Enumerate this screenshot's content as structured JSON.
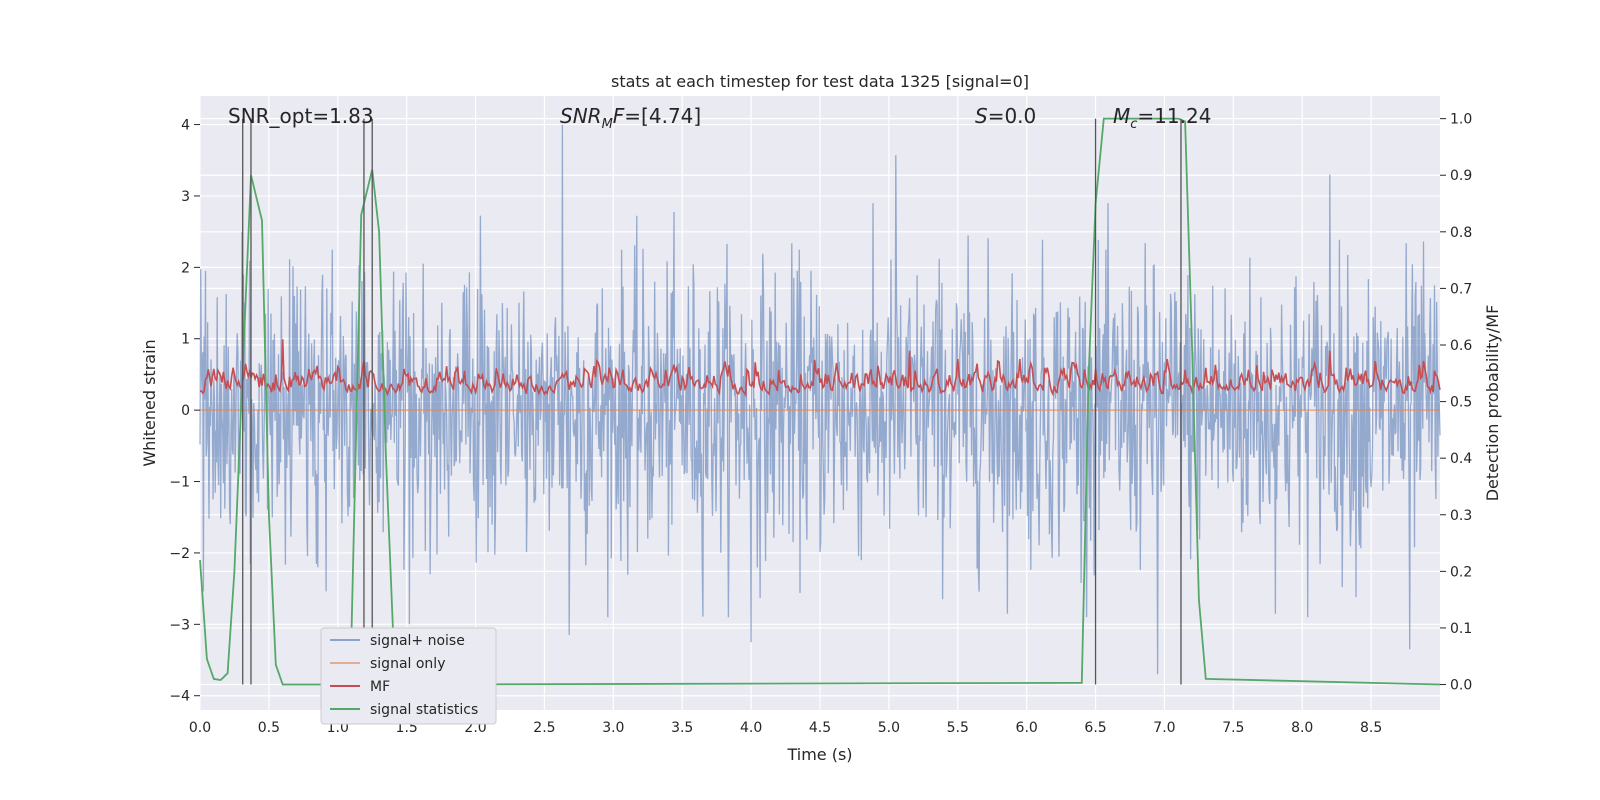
{
  "chart_data": {
    "type": "line",
    "title": "stats at each timestep for test data 1325 [signal=0]",
    "xlabel": "Time (s)",
    "ylabel": "Whitened strain",
    "ylabel_right": "Detection probability/MF",
    "xlim": [
      0.0,
      9.0
    ],
    "ylim": [
      -4.2,
      4.4
    ],
    "ylim_right": [
      -0.045,
      1.04
    ],
    "x_ticks": [
      "0.0",
      "0.5",
      "1.0",
      "1.5",
      "2.0",
      "2.5",
      "3.0",
      "3.5",
      "4.0",
      "4.5",
      "5.0",
      "5.5",
      "6.0",
      "6.5",
      "7.0",
      "7.5",
      "8.0",
      "8.5"
    ],
    "y_ticks": [
      "4",
      "3",
      "2",
      "1",
      "0",
      "−1",
      "−2",
      "−3",
      "−4"
    ],
    "y_ticks_right": [
      "1.0",
      "0.9",
      "0.8",
      "0.7",
      "0.6",
      "0.5",
      "0.4",
      "0.3",
      "0.2",
      "0.1",
      "0.0"
    ],
    "grid": true,
    "legend_position": "lower-left",
    "annotations": {
      "snr_opt": "SNR_opt=1.83",
      "snr_mf": "SNR_MF=[4.74]",
      "s": "S=0.0",
      "mc": "M_c=11.24"
    },
    "series": [
      {
        "name": "signal+ noise",
        "color": "#4c72b0",
        "axis": "left",
        "note": "whitened strain, approx. zero-mean noise with amplitude ~±2.5, peaks to 4.0 near t=2.63 and -3.7 near t=6.95",
        "peaks": [
          [
            2.63,
            4.0
          ],
          [
            5.05,
            3.57
          ],
          [
            8.2,
            3.3
          ],
          [
            1.52,
            -3.0
          ],
          [
            2.68,
            -3.15
          ],
          [
            4.0,
            -3.25
          ],
          [
            6.95,
            -3.7
          ],
          [
            8.78,
            -3.35
          ]
        ]
      },
      {
        "name": "signal only",
        "color": "#dd8452",
        "axis": "left",
        "x": [
          0.0,
          9.0
        ],
        "y": [
          0.0,
          0.0
        ]
      },
      {
        "name": "MF",
        "color": "#c44e52",
        "axis": "right",
        "note": "matched filter output fluctuating between ~0.5 and ~0.58 with peaks",
        "peaks": [
          [
            0.6,
            0.61
          ],
          [
            5.15,
            0.59
          ],
          [
            8.2,
            0.59
          ]
        ]
      },
      {
        "name": "signal statistics",
        "color": "#55a868",
        "axis": "right",
        "x": [
          0.0,
          0.05,
          0.1,
          0.15,
          0.2,
          0.25,
          0.3,
          0.37,
          0.45,
          0.5,
          0.55,
          0.6,
          1.0,
          1.1,
          1.17,
          1.25,
          1.3,
          1.35,
          1.4,
          1.45,
          1.5,
          6.4,
          6.45,
          6.5,
          6.56,
          7.1,
          7.15,
          7.2,
          7.25,
          7.3,
          9.0
        ],
        "y": [
          0.22,
          0.045,
          0.01,
          0.008,
          0.02,
          0.2,
          0.5,
          0.9,
          0.82,
          0.3,
          0.035,
          0.0,
          0.0,
          0.1,
          0.83,
          0.91,
          0.8,
          0.4,
          0.1,
          0.02,
          0.0,
          0.003,
          0.55,
          0.85,
          1.0,
          1.0,
          0.995,
          0.6,
          0.15,
          0.01,
          0.0
        ]
      }
    ],
    "markers": [
      0.31,
      0.37,
      1.19,
      1.25,
      6.5,
      7.12
    ]
  }
}
